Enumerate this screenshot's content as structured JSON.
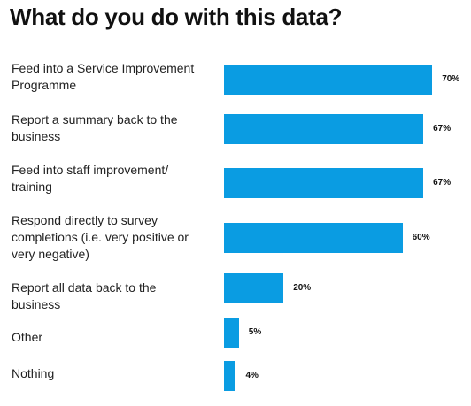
{
  "chart_data": {
    "type": "bar",
    "orientation": "horizontal",
    "title": "What do you do with this data?",
    "categories": [
      "Feed into a Service Improvement Programme",
      "Report a summary back to the business",
      "Feed into staff improvement/ training",
      "Respond directly to survey completions (i.e. very positive or very negative)",
      "Report all data back to the business",
      "Other",
      "Nothing"
    ],
    "values": [
      70,
      67,
      67,
      60,
      20,
      5,
      4
    ],
    "value_labels": [
      "70%",
      "67%",
      "67%",
      "60%",
      "20%",
      "5%",
      "4%"
    ],
    "color": "#0a9ce2"
  }
}
